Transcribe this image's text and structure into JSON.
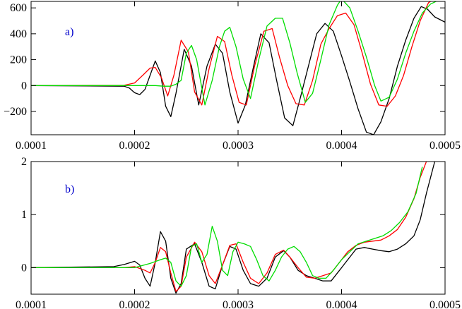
{
  "chart_data": [
    {
      "type": "line",
      "panel_label": "a)",
      "title": "",
      "xlabel": "",
      "ylabel": "",
      "xlim": [
        0.0001,
        0.0005
      ],
      "ylim": [
        -380,
        650
      ],
      "x_ticks": [
        {
          "value": 0.0001,
          "label": "0.0001"
        },
        {
          "value": 0.0002,
          "label": "0.0002"
        },
        {
          "value": 0.0003,
          "label": "0.0003"
        },
        {
          "value": 0.0004,
          "label": "0.0004"
        },
        {
          "value": 0.0005,
          "label": "0.0005"
        }
      ],
      "y_ticks": [
        {
          "value": -200,
          "label": "−200"
        },
        {
          "value": 0,
          "label": "0"
        },
        {
          "value": 200,
          "label": "200"
        },
        {
          "value": 400,
          "label": "400"
        },
        {
          "value": 600,
          "label": "600"
        }
      ],
      "grid": false,
      "legend": "none",
      "series": [
        {
          "color": "#000000",
          "x": [
            0.0001,
            0.00019,
            0.000195,
            0.0002,
            0.000205,
            0.00021,
            0.000215,
            0.00022,
            0.000225,
            0.00023,
            0.000235,
            0.00024,
            0.000248,
            0.000255,
            0.000262,
            0.00027,
            0.000278,
            0.000285,
            0.000292,
            0.0003,
            0.000307,
            0.000315,
            0.000322,
            0.00033,
            0.000337,
            0.000345,
            0.000353,
            0.00036,
            0.000368,
            0.000376,
            0.000384,
            0.000392,
            0.0004,
            0.000408,
            0.000416,
            0.000424,
            0.000431,
            0.000438,
            0.000446,
            0.000454,
            0.000462,
            0.00047,
            0.000477,
            0.000483,
            0.00049,
            0.0005
          ],
          "y": [
            0,
            -5,
            -20,
            -55,
            -70,
            -30,
            80,
            190,
            100,
            -160,
            -240,
            -60,
            280,
            150,
            -150,
            150,
            320,
            250,
            -50,
            -290,
            -150,
            150,
            400,
            330,
            50,
            -250,
            -310,
            -100,
            150,
            400,
            480,
            420,
            230,
            30,
            -180,
            -360,
            -380,
            -280,
            -100,
            150,
            350,
            520,
            610,
            590,
            530,
            490
          ]
        },
        {
          "color": "#ff0000",
          "x": [
            0.0001,
            0.00019,
            0.0002,
            0.000208,
            0.000215,
            0.00022,
            0.000226,
            0.000232,
            0.000238,
            0.000245,
            0.000252,
            0.000258,
            0.000265,
            0.000272,
            0.00028,
            0.000287,
            0.000294,
            0.000301,
            0.000308,
            0.000316,
            0.000325,
            0.000333,
            0.00034,
            0.000348,
            0.000356,
            0.000364,
            0.000372,
            0.00038,
            0.000388,
            0.000396,
            0.000404,
            0.000412,
            0.00042,
            0.000428,
            0.000436,
            0.000444,
            0.000452,
            0.00046,
            0.000468,
            0.000476,
            0.000484,
            0.000492,
            0.0005
          ],
          "y": [
            0,
            2,
            20,
            80,
            135,
            140,
            60,
            -80,
            80,
            350,
            260,
            -50,
            -150,
            130,
            380,
            340,
            80,
            -130,
            -150,
            150,
            420,
            440,
            220,
            0,
            -140,
            -150,
            40,
            320,
            440,
            540,
            560,
            470,
            250,
            10,
            -150,
            -160,
            -80,
            80,
            300,
            500,
            640,
            680,
            700
          ]
        },
        {
          "color": "#00dd00",
          "x": [
            0.0001,
            0.0002,
            0.00021,
            0.00022,
            0.000228,
            0.000235,
            0.00024,
            0.000245,
            0.00025,
            0.000255,
            0.00026,
            0.000268,
            0.000275,
            0.000282,
            0.000287,
            0.000292,
            0.000298,
            0.000305,
            0.000312,
            0.00032,
            0.000328,
            0.000336,
            0.000343,
            0.00035,
            0.000357,
            0.000365,
            0.000372,
            0.00038,
            0.000388,
            0.000396,
            0.0004,
            0.000408,
            0.000416,
            0.000424,
            0.000432,
            0.000438,
            0.000446,
            0.000454,
            0.000462,
            0.00047,
            0.000478,
            0.000486,
            0.000494,
            0.0005
          ],
          "y": [
            0,
            0,
            0,
            0,
            -5,
            -5,
            10,
            40,
            250,
            310,
            200,
            -150,
            40,
            300,
            420,
            450,
            300,
            50,
            -100,
            200,
            460,
            520,
            520,
            330,
            100,
            -130,
            -60,
            200,
            470,
            620,
            670,
            600,
            420,
            220,
            0,
            -120,
            -90,
            50,
            250,
            420,
            560,
            630,
            660,
            660
          ]
        }
      ]
    },
    {
      "type": "line",
      "panel_label": "b)",
      "title": "",
      "xlabel": "",
      "ylabel": "",
      "xlim": [
        0.0001,
        0.0005
      ],
      "ylim": [
        -0.5,
        2
      ],
      "x_ticks": [
        {
          "value": 0.0001,
          "label": "0.0001"
        },
        {
          "value": 0.0002,
          "label": "0.0002"
        },
        {
          "value": 0.0003,
          "label": "0.0003"
        },
        {
          "value": 0.0004,
          "label": "0.0004"
        },
        {
          "value": 0.0005,
          "label": "0.0005"
        }
      ],
      "y_ticks": [
        {
          "value": 0,
          "label": "0"
        },
        {
          "value": 1,
          "label": "1"
        },
        {
          "value": 2,
          "label": "2"
        }
      ],
      "grid": false,
      "legend": "none",
      "series": [
        {
          "color": "#000000",
          "x": [
            0.0001,
            0.00018,
            0.00019,
            0.0002,
            0.000205,
            0.00021,
            0.000215,
            0.00022,
            0.000225,
            0.00023,
            0.000235,
            0.00024,
            0.000245,
            0.00025,
            0.000258,
            0.000265,
            0.000272,
            0.000278,
            0.000285,
            0.000292,
            0.000298,
            0.000305,
            0.000312,
            0.00032,
            0.000328,
            0.000336,
            0.000344,
            0.00035,
            0.000358,
            0.000366,
            0.000374,
            0.000382,
            0.00039,
            0.000398,
            0.000406,
            0.000414,
            0.000422,
            0.00043,
            0.000438,
            0.000446,
            0.000454,
            0.000462,
            0.00047,
            0.000476,
            0.000482,
            0.00049
          ],
          "y": [
            0,
            0.02,
            0.06,
            0.12,
            0.05,
            -0.2,
            -0.35,
            0.1,
            0.68,
            0.5,
            -0.2,
            -0.48,
            -0.3,
            0.35,
            0.45,
            0.1,
            -0.35,
            -0.4,
            0.05,
            0.4,
            0.35,
            -0.05,
            -0.3,
            -0.35,
            -0.2,
            0.2,
            0.32,
            0.2,
            -0.05,
            -0.15,
            -0.2,
            -0.25,
            -0.25,
            -0.05,
            0.15,
            0.35,
            0.38,
            0.35,
            0.32,
            0.3,
            0.35,
            0.45,
            0.6,
            0.9,
            1.4,
            2.0
          ]
        },
        {
          "color": "#ff0000",
          "x": [
            0.0001,
            0.00019,
            0.0002,
            0.00021,
            0.000215,
            0.00022,
            0.000225,
            0.00023,
            0.000235,
            0.00024,
            0.000245,
            0.00025,
            0.000258,
            0.000265,
            0.000272,
            0.000278,
            0.000285,
            0.000292,
            0.000298,
            0.000305,
            0.000312,
            0.00032,
            0.000328,
            0.000336,
            0.000344,
            0.00035,
            0.000358,
            0.000366,
            0.000374,
            0.000382,
            0.00039,
            0.000398,
            0.000406,
            0.000414,
            0.000422,
            0.00043,
            0.000438,
            0.000446,
            0.000454,
            0.000462,
            0.00047,
            0.000476,
            0.000482
          ],
          "y": [
            0,
            0,
            0.02,
            -0.05,
            -0.1,
            0.1,
            0.38,
            0.3,
            -0.1,
            -0.45,
            -0.35,
            0.2,
            0.48,
            0.3,
            -0.15,
            -0.3,
            0.05,
            0.42,
            0.45,
            0.1,
            -0.2,
            -0.3,
            -0.1,
            0.25,
            0.33,
            0.2,
            0.0,
            -0.18,
            -0.2,
            -0.15,
            -0.1,
            0.1,
            0.3,
            0.42,
            0.48,
            0.5,
            0.52,
            0.6,
            0.72,
            0.95,
            1.3,
            1.7,
            2.0
          ]
        },
        {
          "color": "#00dd00",
          "x": [
            0.0001,
            0.0002,
            0.000215,
            0.000225,
            0.00023,
            0.000235,
            0.00024,
            0.000245,
            0.00025,
            0.000255,
            0.00026,
            0.000265,
            0.00027,
            0.000275,
            0.00028,
            0.000285,
            0.00029,
            0.000295,
            0.0003,
            0.000306,
            0.000312,
            0.000318,
            0.000324,
            0.00033,
            0.000336,
            0.000342,
            0.000348,
            0.000354,
            0.00036,
            0.000366,
            0.000372,
            0.000378,
            0.000385,
            0.000392,
            0.0004,
            0.000408,
            0.000416,
            0.000424,
            0.000432,
            0.00044,
            0.000448,
            0.000456,
            0.000464,
            0.000472,
            0.000478
          ],
          "y": [
            0,
            0,
            0.08,
            0.15,
            0.18,
            0.1,
            -0.25,
            -0.35,
            -0.15,
            0.4,
            0.45,
            0.1,
            0.25,
            0.78,
            0.5,
            -0.05,
            -0.15,
            0.3,
            0.48,
            0.45,
            0.4,
            0.15,
            -0.15,
            -0.25,
            -0.05,
            0.2,
            0.35,
            0.4,
            0.3,
            0.1,
            -0.15,
            -0.2,
            -0.2,
            -0.05,
            0.15,
            0.3,
            0.45,
            0.5,
            0.55,
            0.6,
            0.7,
            0.85,
            1.05,
            1.4,
            1.9
          ]
        }
      ]
    }
  ]
}
